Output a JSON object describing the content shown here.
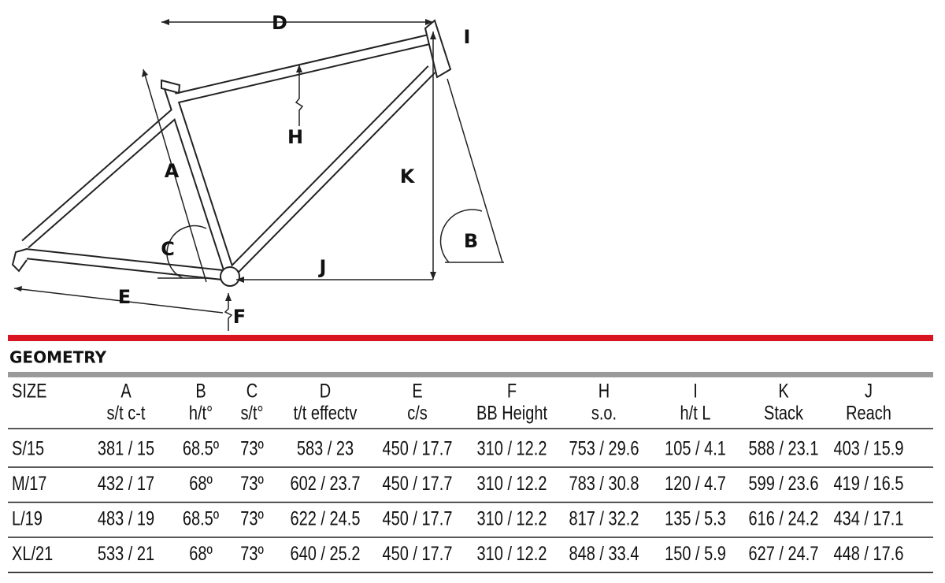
{
  "diagram": {
    "labels": {
      "D": "D",
      "I": "I",
      "H": "H",
      "A": "A",
      "K": "K",
      "C": "C",
      "B": "B",
      "J": "J",
      "E": "E",
      "F": "F"
    }
  },
  "table": {
    "title": "GEOMETRY",
    "size_header": "SIZE",
    "columns": [
      {
        "letter": "A",
        "name": "s/t c-t"
      },
      {
        "letter": "B",
        "name": "h/t°"
      },
      {
        "letter": "C",
        "name": "s/t°"
      },
      {
        "letter": "D",
        "name": "t/t effectv"
      },
      {
        "letter": "E",
        "name": "c/s"
      },
      {
        "letter": "F",
        "name": "BB Height"
      },
      {
        "letter": "H",
        "name": "s.o."
      },
      {
        "letter": "I",
        "name": "h/t L"
      },
      {
        "letter": "K",
        "name": "Stack"
      },
      {
        "letter": "J",
        "name": "Reach"
      }
    ],
    "rows": [
      [
        "S/15",
        "381 / 15",
        "68.5º",
        "73º",
        "583 / 23",
        "450 / 17.7",
        "310 / 12.2",
        "753 / 29.6",
        "105 / 4.1",
        "588 / 23.1",
        "403 / 15.9"
      ],
      [
        "M/17",
        "432 / 17",
        "68º",
        "73º",
        "602 / 23.7",
        "450 / 17.7",
        "310 / 12.2",
        "783 / 30.8",
        "120 / 4.7",
        "599 / 23.6",
        "419 / 16.5"
      ],
      [
        "L/19",
        "483 / 19",
        "68.5º",
        "73º",
        "622 / 24.5",
        "450 / 17.7",
        "310 / 12.2",
        "817 / 32.2",
        "135 / 5.3",
        "616 / 24.2",
        "434 / 17.1"
      ],
      [
        "XL/21",
        "533 / 21",
        "68º",
        "73º",
        "640 / 25.2",
        "450 / 17.7",
        "310 / 12.2",
        "848 / 33.4",
        "150 / 5.9",
        "627 / 24.7",
        "448 / 17.6"
      ]
    ]
  }
}
